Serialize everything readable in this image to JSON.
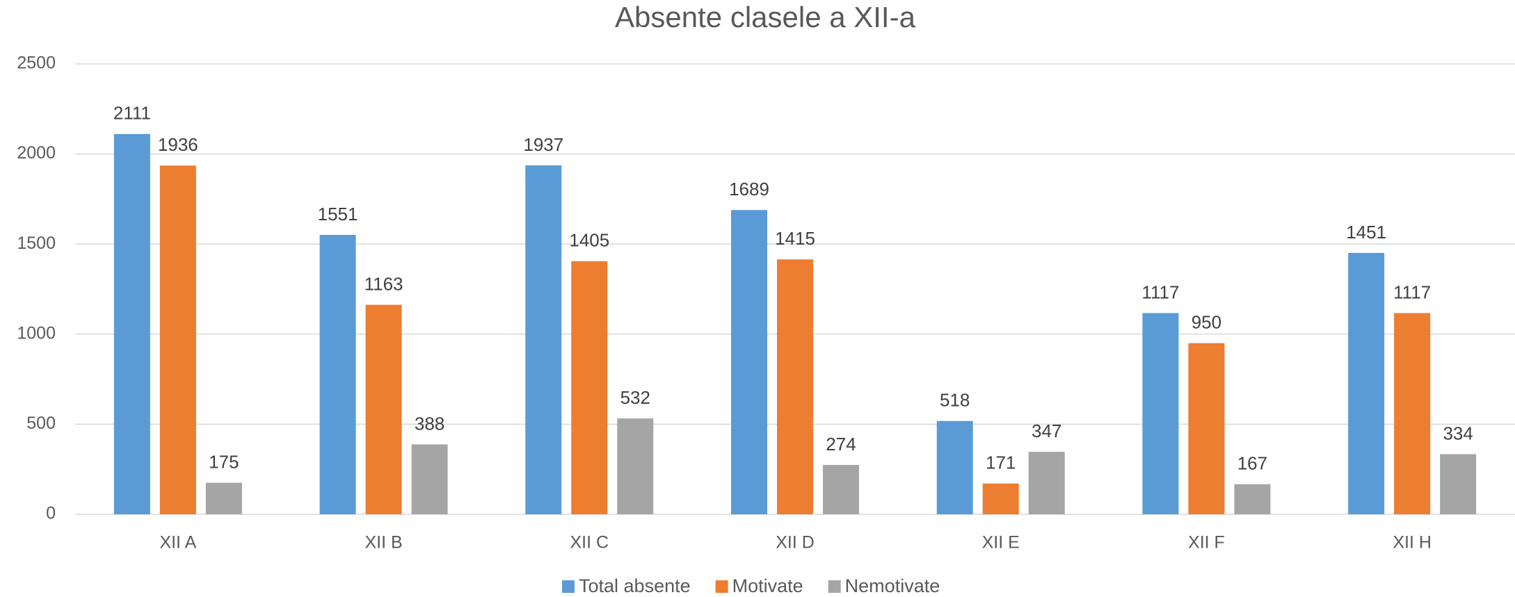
{
  "chart_data": {
    "type": "bar",
    "title": "Absente clasele a XII-a",
    "categories": [
      "XII A",
      "XII B",
      "XII C",
      "XII D",
      "XII E",
      "XII F",
      "XII H"
    ],
    "series": [
      {
        "name": "Total absente",
        "color": "#5b9bd5",
        "values": [
          2111,
          1551,
          1937,
          1689,
          518,
          1117,
          1451
        ]
      },
      {
        "name": "Motivate",
        "color": "#ed7d31",
        "values": [
          1936,
          1163,
          1405,
          1415,
          171,
          950,
          1117
        ]
      },
      {
        "name": "Nemotivate",
        "color": "#a5a5a5",
        "values": [
          175,
          388,
          532,
          274,
          347,
          167,
          334
        ]
      }
    ],
    "ylim": [
      0,
      2500
    ],
    "yticks": [
      0,
      500,
      1000,
      1500,
      2000,
      2500
    ],
    "grid": true,
    "legend": "bottom"
  }
}
